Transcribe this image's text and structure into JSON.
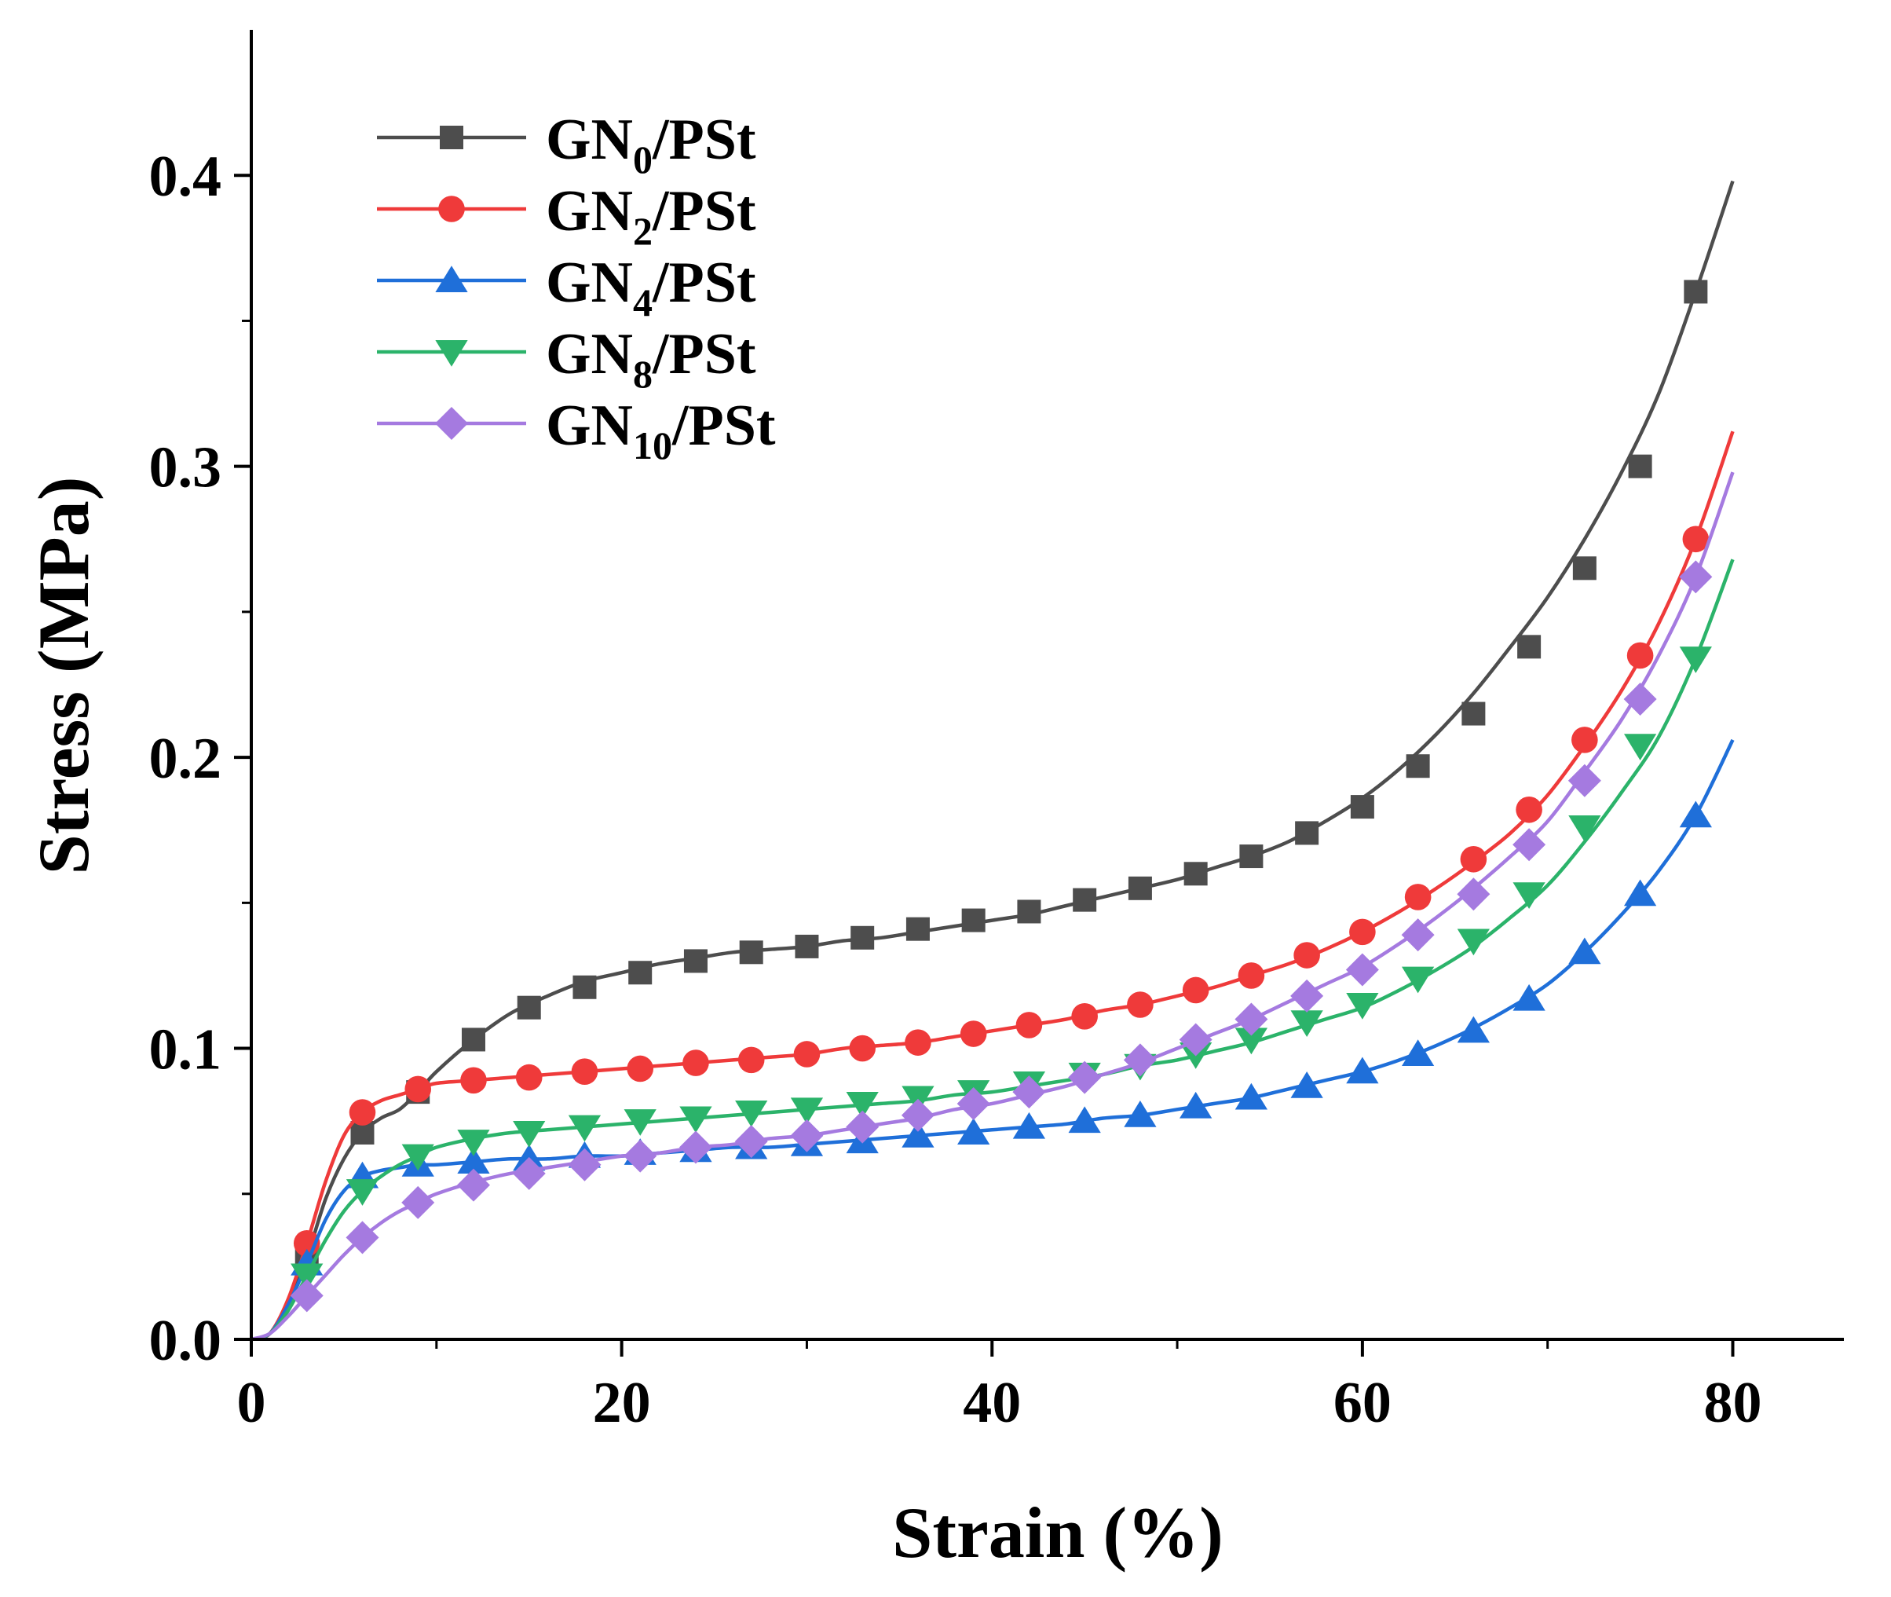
{
  "chart_data": {
    "type": "line",
    "xlabel": "Strain (%)",
    "ylabel": "Stress (MPa)",
    "xlim": [
      0,
      86
    ],
    "ylim": [
      0,
      0.45
    ],
    "xticks": [
      0,
      20,
      40,
      60,
      80
    ],
    "yticks": [
      0.0,
      0.1,
      0.2,
      0.3,
      0.4
    ],
    "xtick_labels": [
      "0",
      "20",
      "40",
      "60",
      "80"
    ],
    "ytick_labels": [
      "0.0",
      "0.1",
      "0.2",
      "0.3",
      "0.4"
    ],
    "grid": false,
    "legend_position": "top-left",
    "series": [
      {
        "name": "GN0/PSt",
        "legend": {
          "base": "GN",
          "sub": "0",
          "suffix": "/PSt"
        },
        "color": "#4d4d4d",
        "marker": "square",
        "x": [
          0,
          1,
          2,
          3,
          4,
          5,
          6,
          7,
          8,
          9,
          10,
          12,
          14,
          16,
          18,
          20,
          22,
          24,
          26,
          28,
          30,
          32,
          34,
          36,
          38,
          40,
          42,
          44,
          46,
          48,
          50,
          52,
          54,
          56,
          58,
          60,
          62,
          64,
          66,
          68,
          70,
          72,
          74,
          76,
          78,
          80
        ],
        "y": [
          0,
          0.002,
          0.012,
          0.028,
          0.048,
          0.062,
          0.071,
          0.076,
          0.079,
          0.085,
          0.092,
          0.103,
          0.112,
          0.118,
          0.123,
          0.126,
          0.129,
          0.131,
          0.133,
          0.134,
          0.135,
          0.137,
          0.138,
          0.14,
          0.142,
          0.144,
          0.146,
          0.149,
          0.152,
          0.155,
          0.158,
          0.162,
          0.166,
          0.171,
          0.178,
          0.186,
          0.196,
          0.208,
          0.222,
          0.238,
          0.255,
          0.275,
          0.298,
          0.325,
          0.36,
          0.398
        ],
        "marker_x": [
          3,
          6,
          9,
          12,
          15,
          18,
          21,
          24,
          27,
          30,
          33,
          36,
          39,
          42,
          45,
          48,
          51,
          54,
          57,
          60,
          63,
          66,
          69,
          72,
          75,
          78
        ],
        "marker_y": [
          0.028,
          0.071,
          0.085,
          0.103,
          0.114,
          0.121,
          0.126,
          0.13,
          0.133,
          0.135,
          0.138,
          0.141,
          0.144,
          0.147,
          0.151,
          0.155,
          0.16,
          0.166,
          0.174,
          0.183,
          0.197,
          0.215,
          0.238,
          0.265,
          0.3,
          0.36
        ]
      },
      {
        "name": "GN2/PSt",
        "legend": {
          "base": "GN",
          "sub": "2",
          "suffix": "/PSt"
        },
        "color": "#ef3a3a",
        "marker": "circle",
        "x": [
          0,
          1,
          2,
          3,
          4,
          5,
          6,
          7,
          8,
          9,
          10,
          12,
          14,
          16,
          18,
          20,
          22,
          24,
          26,
          28,
          30,
          32,
          34,
          36,
          38,
          40,
          42,
          44,
          46,
          48,
          50,
          52,
          54,
          56,
          58,
          60,
          62,
          64,
          66,
          68,
          70,
          72,
          74,
          76,
          78,
          80
        ],
        "y": [
          0,
          0.002,
          0.014,
          0.033,
          0.054,
          0.07,
          0.078,
          0.082,
          0.084,
          0.086,
          0.088,
          0.089,
          0.09,
          0.091,
          0.092,
          0.093,
          0.094,
          0.095,
          0.096,
          0.097,
          0.098,
          0.1,
          0.101,
          0.102,
          0.104,
          0.106,
          0.108,
          0.11,
          0.113,
          0.115,
          0.118,
          0.121,
          0.125,
          0.129,
          0.134,
          0.14,
          0.147,
          0.155,
          0.164,
          0.174,
          0.187,
          0.204,
          0.223,
          0.246,
          0.275,
          0.312
        ],
        "marker_x": [
          3,
          6,
          9,
          12,
          15,
          18,
          21,
          24,
          27,
          30,
          33,
          36,
          39,
          42,
          45,
          48,
          51,
          54,
          57,
          60,
          63,
          66,
          69,
          72,
          75,
          78
        ],
        "marker_y": [
          0.033,
          0.078,
          0.086,
          0.089,
          0.09,
          0.092,
          0.093,
          0.095,
          0.096,
          0.098,
          0.1,
          0.102,
          0.105,
          0.108,
          0.111,
          0.115,
          0.12,
          0.125,
          0.132,
          0.14,
          0.152,
          0.165,
          0.182,
          0.206,
          0.235,
          0.275
        ]
      },
      {
        "name": "GN4/PSt",
        "legend": {
          "base": "GN",
          "sub": "4",
          "suffix": "/PSt"
        },
        "color": "#1f6fd9",
        "marker": "triangle-up",
        "x": [
          0,
          1,
          2,
          3,
          4,
          5,
          6,
          7,
          8,
          9,
          10,
          12,
          14,
          16,
          18,
          20,
          22,
          24,
          26,
          28,
          30,
          32,
          34,
          36,
          38,
          40,
          42,
          44,
          46,
          48,
          50,
          52,
          54,
          56,
          58,
          60,
          62,
          64,
          66,
          68,
          70,
          72,
          74,
          76,
          78,
          80
        ],
        "y": [
          0,
          0.002,
          0.012,
          0.026,
          0.041,
          0.051,
          0.056,
          0.058,
          0.059,
          0.06,
          0.06,
          0.061,
          0.062,
          0.062,
          0.063,
          0.063,
          0.064,
          0.065,
          0.066,
          0.066,
          0.067,
          0.068,
          0.069,
          0.07,
          0.071,
          0.072,
          0.073,
          0.074,
          0.076,
          0.077,
          0.079,
          0.081,
          0.083,
          0.086,
          0.089,
          0.092,
          0.096,
          0.101,
          0.107,
          0.114,
          0.122,
          0.133,
          0.146,
          0.161,
          0.18,
          0.206
        ],
        "marker_x": [
          3,
          6,
          9,
          12,
          15,
          18,
          21,
          24,
          27,
          30,
          33,
          36,
          39,
          42,
          45,
          48,
          51,
          54,
          57,
          60,
          63,
          66,
          69,
          72,
          75,
          78
        ],
        "marker_y": [
          0.026,
          0.056,
          0.06,
          0.061,
          0.062,
          0.063,
          0.064,
          0.065,
          0.066,
          0.067,
          0.068,
          0.07,
          0.071,
          0.073,
          0.075,
          0.077,
          0.08,
          0.083,
          0.087,
          0.092,
          0.098,
          0.106,
          0.117,
          0.133,
          0.153,
          0.18
        ]
      },
      {
        "name": "GN8/PSt",
        "legend": {
          "base": "GN",
          "sub": "8",
          "suffix": "/PSt"
        },
        "color": "#2bb36a",
        "marker": "triangle-down",
        "x": [
          0,
          1,
          2,
          3,
          4,
          5,
          6,
          7,
          8,
          9,
          10,
          12,
          14,
          16,
          18,
          20,
          22,
          24,
          26,
          28,
          30,
          32,
          34,
          36,
          38,
          40,
          42,
          44,
          46,
          48,
          50,
          52,
          54,
          56,
          58,
          60,
          62,
          64,
          66,
          68,
          70,
          72,
          74,
          76,
          78,
          80
        ],
        "y": [
          0,
          0.002,
          0.01,
          0.022,
          0.034,
          0.044,
          0.051,
          0.056,
          0.06,
          0.063,
          0.066,
          0.069,
          0.071,
          0.072,
          0.073,
          0.074,
          0.075,
          0.076,
          0.077,
          0.078,
          0.079,
          0.08,
          0.081,
          0.082,
          0.084,
          0.085,
          0.087,
          0.089,
          0.091,
          0.094,
          0.096,
          0.099,
          0.102,
          0.106,
          0.11,
          0.114,
          0.12,
          0.127,
          0.135,
          0.145,
          0.156,
          0.171,
          0.188,
          0.207,
          0.234,
          0.268
        ],
        "marker_x": [
          3,
          6,
          9,
          12,
          15,
          18,
          21,
          24,
          27,
          30,
          33,
          36,
          39,
          42,
          45,
          48,
          51,
          54,
          57,
          60,
          63,
          66,
          69,
          72,
          75,
          78
        ],
        "marker_y": [
          0.022,
          0.051,
          0.063,
          0.068,
          0.071,
          0.073,
          0.075,
          0.076,
          0.078,
          0.079,
          0.081,
          0.083,
          0.085,
          0.088,
          0.091,
          0.094,
          0.098,
          0.103,
          0.109,
          0.115,
          0.124,
          0.137,
          0.153,
          0.176,
          0.204,
          0.234
        ]
      },
      {
        "name": "GN10/PSt",
        "legend": {
          "base": "GN",
          "sub": "10",
          "suffix": "/PSt"
        },
        "color": "#a57ae0",
        "marker": "diamond",
        "x": [
          0,
          1,
          2,
          3,
          4,
          5,
          6,
          7,
          8,
          9,
          10,
          12,
          14,
          16,
          18,
          20,
          22,
          24,
          26,
          28,
          30,
          32,
          34,
          36,
          38,
          40,
          42,
          44,
          46,
          48,
          50,
          52,
          54,
          56,
          58,
          60,
          62,
          64,
          66,
          68,
          70,
          72,
          74,
          76,
          78,
          80
        ],
        "y": [
          0,
          0.002,
          0.008,
          0.015,
          0.022,
          0.029,
          0.035,
          0.04,
          0.044,
          0.047,
          0.05,
          0.054,
          0.057,
          0.059,
          0.061,
          0.063,
          0.064,
          0.066,
          0.067,
          0.069,
          0.07,
          0.072,
          0.074,
          0.076,
          0.079,
          0.081,
          0.084,
          0.087,
          0.091,
          0.095,
          0.1,
          0.105,
          0.11,
          0.116,
          0.122,
          0.128,
          0.136,
          0.145,
          0.155,
          0.166,
          0.178,
          0.195,
          0.213,
          0.235,
          0.262,
          0.298
        ],
        "marker_x": [
          3,
          6,
          9,
          12,
          15,
          18,
          21,
          24,
          27,
          30,
          33,
          36,
          39,
          42,
          45,
          48,
          51,
          54,
          57,
          60,
          63,
          66,
          69,
          72,
          75,
          78
        ],
        "marker_y": [
          0.015,
          0.035,
          0.047,
          0.053,
          0.057,
          0.06,
          0.063,
          0.066,
          0.068,
          0.07,
          0.073,
          0.077,
          0.081,
          0.085,
          0.09,
          0.096,
          0.103,
          0.11,
          0.118,
          0.127,
          0.139,
          0.153,
          0.17,
          0.192,
          0.22,
          0.262
        ]
      }
    ]
  }
}
